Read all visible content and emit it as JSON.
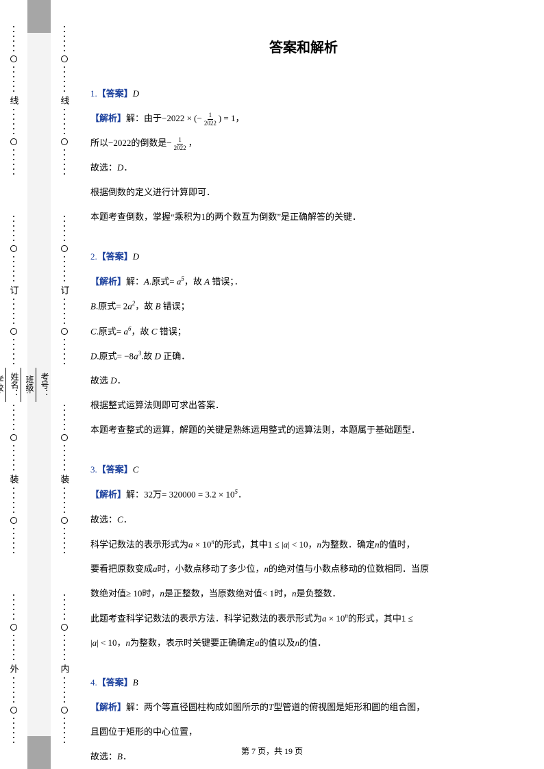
{
  "page": {
    "title": "答案和解析",
    "footer_prefix": "第 ",
    "footer_page": "7",
    "footer_mid": " 页，共 ",
    "footer_total": "19",
    "footer_suffix": " 页"
  },
  "colors": {
    "accent": "#1a3f9c",
    "text": "#000000",
    "grey_light": "#f3f3f3",
    "grey_dark": "#a6a6a6",
    "bg": "#ffffff"
  },
  "binding": {
    "outer_chars": [
      "外",
      "装",
      "订",
      "线"
    ],
    "inner_chars": [
      "内",
      "装",
      "订",
      "线"
    ],
    "form_fields": [
      "学校:",
      "姓名：",
      "班级:",
      "考号："
    ]
  },
  "answers": [
    {
      "num": "1.",
      "tag": "【答案】",
      "letter": "D",
      "jx_tag": "【解析】",
      "lines": [
        "解：由于−2022 × (−{FRAC:1/2022}) = 1，",
        "所以−2022的倒数是−{FRAC:1/2022}，",
        "故选：{I:D}．",
        "根据倒数的定义进行计算即可．",
        "本题考查倒数，掌握“乘积为1的两个数互为倒数”是正确解答的关键．"
      ]
    },
    {
      "num": "2.",
      "tag": "【答案】",
      "letter": "D",
      "jx_tag": "【解析】",
      "lines": [
        "解：{I:A}.原式= {I:a}{SUP:5}，故 {I:A} 错误；．",
        "{I:B}.原式= 2{I:a}{SUP:2}，故 {I:B} 错误；",
        "{I:C}.原式= {I:a}{SUP:6}，故 {I:C} 错误；",
        "{I:D}.原式= −8{I:a}{SUP:3}.故 {I:D} 正确．",
        "故选 {I:D}．",
        "根据整式运算法则即可求出答案．",
        "本题考查整式的运算，解题的关键是熟练运用整式的运算法则，本题属于基础题型．"
      ]
    },
    {
      "num": "3.",
      "tag": "【答案】",
      "letter": "C",
      "jx_tag": "【解析】",
      "lines": [
        "解：32万= 320000 = 3.2 × 10{SUP:5}．",
        "故选：{I:C}．",
        "科学记数法的表示形式为{I:a} × 10{SUP:n}的形式，其中1 ≤ |{I:a}| < 10，{I:n}为整数．确定{I:n}的值时，",
        "要看把原数变成{I:a}时，小数点移动了多少位，{I:n}的绝对值与小数点移动的位数相同．当原",
        "数绝对值≥ 10时，{I:n}是正整数，当原数绝对值< 1时，{I:n}是负整数．",
        "此题考查科学记数法的表示方法．科学记数法的表示形式为{I:a} × 10{SUP:n}的形式，其中1 ≤",
        "|{I:a}| < 10，{I:n}为整数，表示时关键要正确确定{I:a}的值以及{I:n}的值．"
      ]
    },
    {
      "num": "4.",
      "tag": "【答案】",
      "letter": "B",
      "jx_tag": "【解析】",
      "lines": [
        "解：两个等直径圆柱构成如图所示的{I:T}型管道的俯视图是矩形和圆的组合图，",
        "且圆位于矩形的中心位置，",
        "故选：{I:B}．"
      ]
    }
  ]
}
